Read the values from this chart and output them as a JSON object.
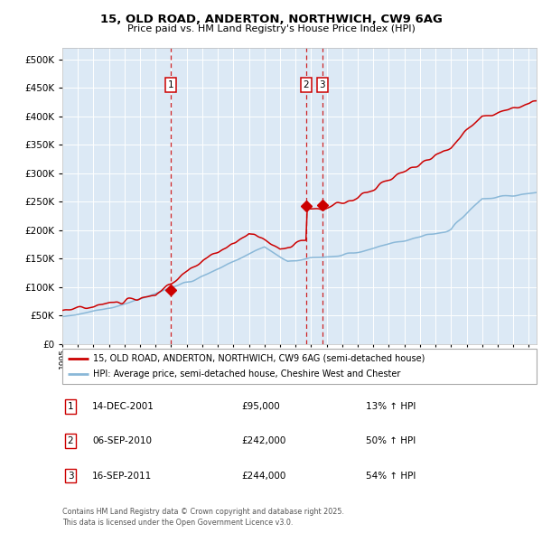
{
  "title": "15, OLD ROAD, ANDERTON, NORTHWICH, CW9 6AG",
  "subtitle": "Price paid vs. HM Land Registry's House Price Index (HPI)",
  "legend_line1": "15, OLD ROAD, ANDERTON, NORTHWICH, CW9 6AG (semi-detached house)",
  "legend_line2": "HPI: Average price, semi-detached house, Cheshire West and Chester",
  "footer": "Contains HM Land Registry data © Crown copyright and database right 2025.\nThis data is licensed under the Open Government Licence v3.0.",
  "transactions": [
    {
      "label": "1",
      "date": "14-DEC-2001",
      "price": 95000,
      "hpi_pct": "13% ↑ HPI",
      "x_year": 2001.96
    },
    {
      "label": "2",
      "date": "06-SEP-2010",
      "price": 242000,
      "hpi_pct": "50% ↑ HPI",
      "x_year": 2010.67
    },
    {
      "label": "3",
      "date": "16-SEP-2011",
      "price": 244000,
      "hpi_pct": "54% ↑ HPI",
      "x_year": 2011.71
    }
  ],
  "red_line_color": "#cc0000",
  "blue_line_color": "#8ab8d8",
  "marker_color": "#cc0000",
  "bg_color": "#dce9f5",
  "vline_color": "#cc0000",
  "grid_color": "#ffffff",
  "ylim": [
    0,
    520000
  ],
  "yticks": [
    0,
    50000,
    100000,
    150000,
    200000,
    250000,
    300000,
    350000,
    400000,
    450000,
    500000
  ],
  "xmin": 1995.0,
  "xmax": 2025.5
}
